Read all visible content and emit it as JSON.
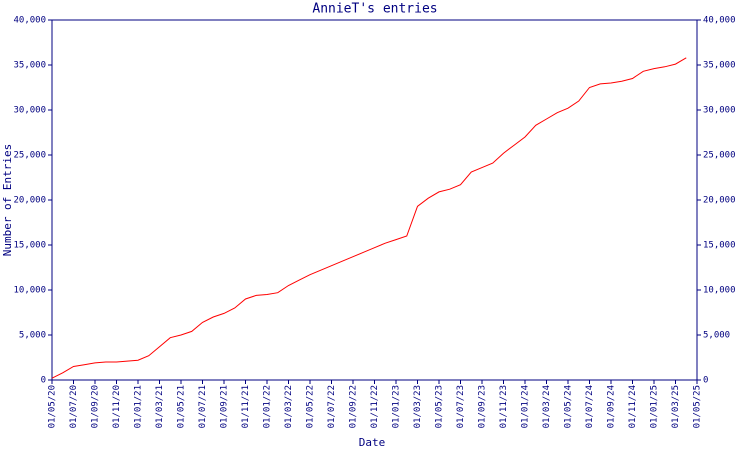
{
  "chart_data": {
    "type": "line",
    "title": "AnnieT's entries",
    "x_label": "Date",
    "y_label": "Number of Entries",
    "x": [
      "01/05/20",
      "01/06/20",
      "01/07/20",
      "01/08/20",
      "01/09/20",
      "01/10/20",
      "01/11/20",
      "01/12/20",
      "01/01/21",
      "01/02/21",
      "01/03/21",
      "01/04/21",
      "01/05/21",
      "01/06/21",
      "01/07/21",
      "01/08/21",
      "01/09/21",
      "01/10/21",
      "01/11/21",
      "01/12/21",
      "01/01/22",
      "01/02/22",
      "01/03/22",
      "01/04/22",
      "01/05/22",
      "01/06/22",
      "01/07/22",
      "01/08/22",
      "01/09/22",
      "01/10/22",
      "01/11/22",
      "01/12/22",
      "01/01/23",
      "01/02/23",
      "01/03/23",
      "01/04/23",
      "01/05/23",
      "01/06/23",
      "01/07/23",
      "01/08/23",
      "01/09/23",
      "01/10/23",
      "01/11/23",
      "01/12/23",
      "01/01/24",
      "01/02/24",
      "01/03/24",
      "01/04/24",
      "01/05/24",
      "01/06/24",
      "01/07/24",
      "01/08/24",
      "01/09/24",
      "01/10/24",
      "01/11/24",
      "01/12/24",
      "01/01/25",
      "01/02/25",
      "01/03/25",
      "01/04/25"
    ],
    "values": [
      200,
      800,
      1500,
      1700,
      1900,
      2000,
      2000,
      2100,
      2200,
      2700,
      3700,
      4700,
      5000,
      5400,
      6400,
      7000,
      7400,
      8000,
      9000,
      9400,
      9500,
      9700,
      10500,
      11100,
      11700,
      12200,
      12700,
      13200,
      13700,
      14200,
      14700,
      15200,
      15600,
      16000,
      19300,
      20200,
      20900,
      21200,
      21700,
      23100,
      23600,
      24100,
      25200,
      26100,
      27000,
      28300,
      29000,
      29700,
      30200,
      31000,
      32500,
      32900,
      33000,
      33200,
      33500,
      34300,
      34600,
      34800,
      35100,
      35800
    ],
    "color": "#ff0000",
    "xlim": [
      "01/05/20",
      "01/05/25"
    ],
    "xticks": [
      "01/05/20",
      "01/07/20",
      "01/09/20",
      "01/11/20",
      "01/01/21",
      "01/03/21",
      "01/05/21",
      "01/07/21",
      "01/09/21",
      "01/11/21",
      "01/01/22",
      "01/03/22",
      "01/05/22",
      "01/07/22",
      "01/09/22",
      "01/11/22",
      "01/01/23",
      "01/03/23",
      "01/05/23",
      "01/07/23",
      "01/09/23",
      "01/11/23",
      "01/01/24",
      "01/03/24",
      "01/05/24",
      "01/07/24",
      "01/09/24",
      "01/11/24",
      "01/01/25",
      "01/03/25",
      "01/05/25"
    ],
    "ylim": [
      0,
      40000
    ],
    "yticks": [
      0,
      {
        "value": 5000,
        "label": "5,000"
      },
      {
        "value": 10000,
        "label": "10,000"
      },
      {
        "value": 15000,
        "label": "15,000"
      },
      {
        "value": 20000,
        "label": "20,000"
      },
      {
        "value": 25000,
        "label": "25,000"
      },
      {
        "value": 30000,
        "label": "30,000"
      },
      {
        "value": 35000,
        "label": "35,000"
      },
      {
        "value": 40000,
        "label": "40,000"
      }
    ],
    "y2lim": [
      0,
      40000
    ],
    "y2ticks": [
      0,
      {
        "value": 5000,
        "label": "5,000"
      },
      {
        "value": 10000,
        "label": "10,000"
      },
      {
        "value": 15000,
        "label": "15,000"
      },
      {
        "value": 20000,
        "label": "20,000"
      },
      {
        "value": 25000,
        "label": "25,000"
      },
      {
        "value": 30000,
        "label": "30,000"
      },
      {
        "value": 35000,
        "label": "35,000"
      },
      {
        "value": 40000,
        "label": "40,000"
      }
    ]
  }
}
